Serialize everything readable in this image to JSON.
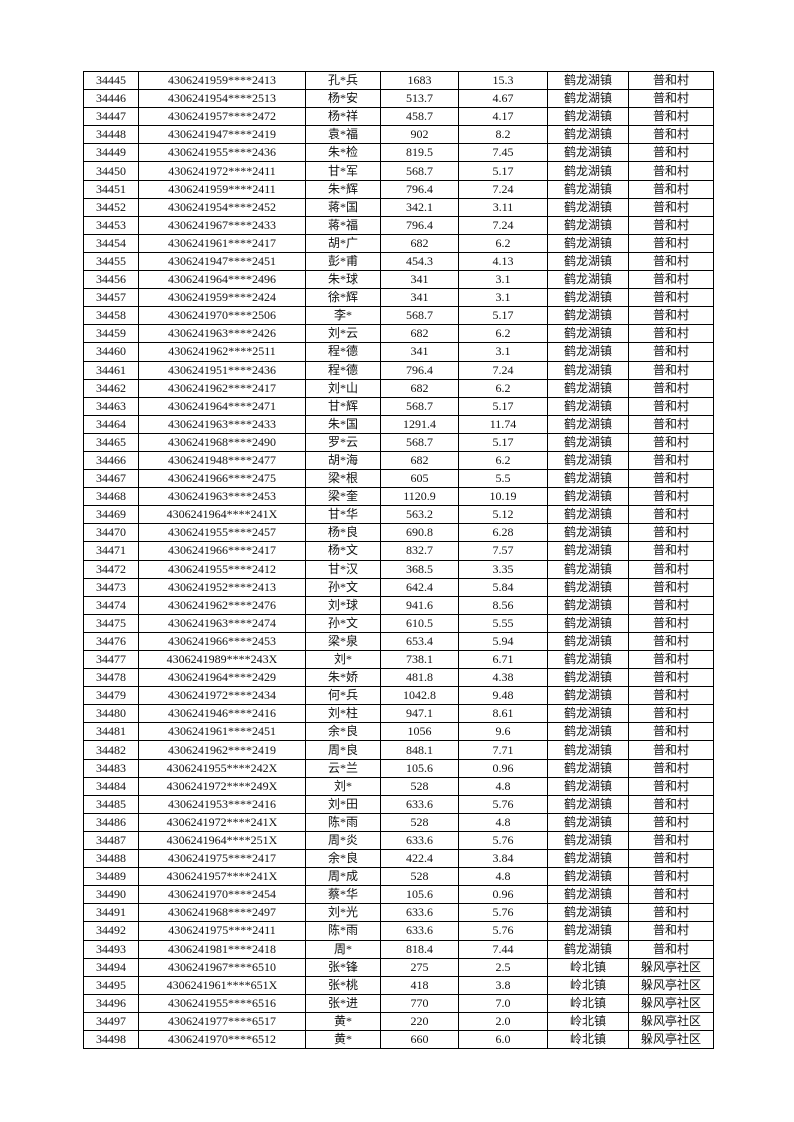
{
  "rows": [
    [
      "34445",
      "4306241959****2413",
      "孔*兵",
      "1683",
      "15.3",
      "鹤龙湖镇",
      "普和村"
    ],
    [
      "34446",
      "4306241954****2513",
      "杨*安",
      "513.7",
      "4.67",
      "鹤龙湖镇",
      "普和村"
    ],
    [
      "34447",
      "4306241957****2472",
      "杨*祥",
      "458.7",
      "4.17",
      "鹤龙湖镇",
      "普和村"
    ],
    [
      "34448",
      "4306241947****2419",
      "袁*福",
      "902",
      "8.2",
      "鹤龙湖镇",
      "普和村"
    ],
    [
      "34449",
      "4306241955****2436",
      "朱*检",
      "819.5",
      "7.45",
      "鹤龙湖镇",
      "普和村"
    ],
    [
      "34450",
      "4306241972****2411",
      "甘*军",
      "568.7",
      "5.17",
      "鹤龙湖镇",
      "普和村"
    ],
    [
      "34451",
      "4306241959****2411",
      "朱*辉",
      "796.4",
      "7.24",
      "鹤龙湖镇",
      "普和村"
    ],
    [
      "34452",
      "4306241954****2452",
      "蒋*国",
      "342.1",
      "3.11",
      "鹤龙湖镇",
      "普和村"
    ],
    [
      "34453",
      "4306241967****2433",
      "蒋*福",
      "796.4",
      "7.24",
      "鹤龙湖镇",
      "普和村"
    ],
    [
      "34454",
      "4306241961****2417",
      "胡*广",
      "682",
      "6.2",
      "鹤龙湖镇",
      "普和村"
    ],
    [
      "34455",
      "4306241947****2451",
      "彭*甫",
      "454.3",
      "4.13",
      "鹤龙湖镇",
      "普和村"
    ],
    [
      "34456",
      "4306241964****2496",
      "朱*球",
      "341",
      "3.1",
      "鹤龙湖镇",
      "普和村"
    ],
    [
      "34457",
      "4306241959****2424",
      "徐*辉",
      "341",
      "3.1",
      "鹤龙湖镇",
      "普和村"
    ],
    [
      "34458",
      "4306241970****2506",
      "李*",
      "568.7",
      "5.17",
      "鹤龙湖镇",
      "普和村"
    ],
    [
      "34459",
      "4306241963****2426",
      "刘*云",
      "682",
      "6.2",
      "鹤龙湖镇",
      "普和村"
    ],
    [
      "34460",
      "4306241962****2511",
      "程*德",
      "341",
      "3.1",
      "鹤龙湖镇",
      "普和村"
    ],
    [
      "34461",
      "4306241951****2436",
      "程*德",
      "796.4",
      "7.24",
      "鹤龙湖镇",
      "普和村"
    ],
    [
      "34462",
      "4306241962****2417",
      "刘*山",
      "682",
      "6.2",
      "鹤龙湖镇",
      "普和村"
    ],
    [
      "34463",
      "4306241964****2471",
      "甘*辉",
      "568.7",
      "5.17",
      "鹤龙湖镇",
      "普和村"
    ],
    [
      "34464",
      "4306241963****2433",
      "朱*国",
      "1291.4",
      "11.74",
      "鹤龙湖镇",
      "普和村"
    ],
    [
      "34465",
      "4306241968****2490",
      "罗*云",
      "568.7",
      "5.17",
      "鹤龙湖镇",
      "普和村"
    ],
    [
      "34466",
      "4306241948****2477",
      "胡*海",
      "682",
      "6.2",
      "鹤龙湖镇",
      "普和村"
    ],
    [
      "34467",
      "4306241966****2475",
      "梁*根",
      "605",
      "5.5",
      "鹤龙湖镇",
      "普和村"
    ],
    [
      "34468",
      "4306241963****2453",
      "梁*奎",
      "1120.9",
      "10.19",
      "鹤龙湖镇",
      "普和村"
    ],
    [
      "34469",
      "4306241964****241X",
      "甘*华",
      "563.2",
      "5.12",
      "鹤龙湖镇",
      "普和村"
    ],
    [
      "34470",
      "4306241955****2457",
      "杨*良",
      "690.8",
      "6.28",
      "鹤龙湖镇",
      "普和村"
    ],
    [
      "34471",
      "4306241966****2417",
      "杨*文",
      "832.7",
      "7.57",
      "鹤龙湖镇",
      "普和村"
    ],
    [
      "34472",
      "4306241955****2412",
      "甘*汉",
      "368.5",
      "3.35",
      "鹤龙湖镇",
      "普和村"
    ],
    [
      "34473",
      "4306241952****2413",
      "孙*文",
      "642.4",
      "5.84",
      "鹤龙湖镇",
      "普和村"
    ],
    [
      "34474",
      "4306241962****2476",
      "刘*球",
      "941.6",
      "8.56",
      "鹤龙湖镇",
      "普和村"
    ],
    [
      "34475",
      "4306241963****2474",
      "孙*文",
      "610.5",
      "5.55",
      "鹤龙湖镇",
      "普和村"
    ],
    [
      "34476",
      "4306241966****2453",
      "梁*泉",
      "653.4",
      "5.94",
      "鹤龙湖镇",
      "普和村"
    ],
    [
      "34477",
      "4306241989****243X",
      "刘*",
      "738.1",
      "6.71",
      "鹤龙湖镇",
      "普和村"
    ],
    [
      "34478",
      "4306241964****2429",
      "朱*娇",
      "481.8",
      "4.38",
      "鹤龙湖镇",
      "普和村"
    ],
    [
      "34479",
      "4306241972****2434",
      "何*兵",
      "1042.8",
      "9.48",
      "鹤龙湖镇",
      "普和村"
    ],
    [
      "34480",
      "4306241946****2416",
      "刘*柱",
      "947.1",
      "8.61",
      "鹤龙湖镇",
      "普和村"
    ],
    [
      "34481",
      "4306241961****2451",
      "余*良",
      "1056",
      "9.6",
      "鹤龙湖镇",
      "普和村"
    ],
    [
      "34482",
      "4306241962****2419",
      "周*良",
      "848.1",
      "7.71",
      "鹤龙湖镇",
      "普和村"
    ],
    [
      "34483",
      "4306241955****242X",
      "云*兰",
      "105.6",
      "0.96",
      "鹤龙湖镇",
      "普和村"
    ],
    [
      "34484",
      "4306241972****249X",
      "刘*",
      "528",
      "4.8",
      "鹤龙湖镇",
      "普和村"
    ],
    [
      "34485",
      "4306241953****2416",
      "刘*田",
      "633.6",
      "5.76",
      "鹤龙湖镇",
      "普和村"
    ],
    [
      "34486",
      "4306241972****241X",
      "陈*雨",
      "528",
      "4.8",
      "鹤龙湖镇",
      "普和村"
    ],
    [
      "34487",
      "4306241964****251X",
      "周*炎",
      "633.6",
      "5.76",
      "鹤龙湖镇",
      "普和村"
    ],
    [
      "34488",
      "4306241975****2417",
      "余*良",
      "422.4",
      "3.84",
      "鹤龙湖镇",
      "普和村"
    ],
    [
      "34489",
      "4306241957****241X",
      "周*成",
      "528",
      "4.8",
      "鹤龙湖镇",
      "普和村"
    ],
    [
      "34490",
      "4306241970****2454",
      "蔡*华",
      "105.6",
      "0.96",
      "鹤龙湖镇",
      "普和村"
    ],
    [
      "34491",
      "4306241968****2497",
      "刘*光",
      "633.6",
      "5.76",
      "鹤龙湖镇",
      "普和村"
    ],
    [
      "34492",
      "4306241975****2411",
      "陈*雨",
      "633.6",
      "5.76",
      "鹤龙湖镇",
      "普和村"
    ],
    [
      "34493",
      "4306241981****2418",
      "周*",
      "818.4",
      "7.44",
      "鹤龙湖镇",
      "普和村"
    ],
    [
      "34494",
      "4306241967****6510",
      "张*锋",
      "275",
      "2.5",
      "岭北镇",
      "躲风亭社区"
    ],
    [
      "34495",
      "4306241961****651X",
      "张*桃",
      "418",
      "3.8",
      "岭北镇",
      "躲风亭社区"
    ],
    [
      "34496",
      "4306241955****6516",
      "张*进",
      "770",
      "7.0",
      "岭北镇",
      "躲风亭社区"
    ],
    [
      "34497",
      "4306241977****6517",
      "黄*",
      "220",
      "2.0",
      "岭北镇",
      "躲风亭社区"
    ],
    [
      "34498",
      "4306241970****6512",
      "黄*",
      "660",
      "6.0",
      "岭北镇",
      "躲风亭社区"
    ]
  ]
}
